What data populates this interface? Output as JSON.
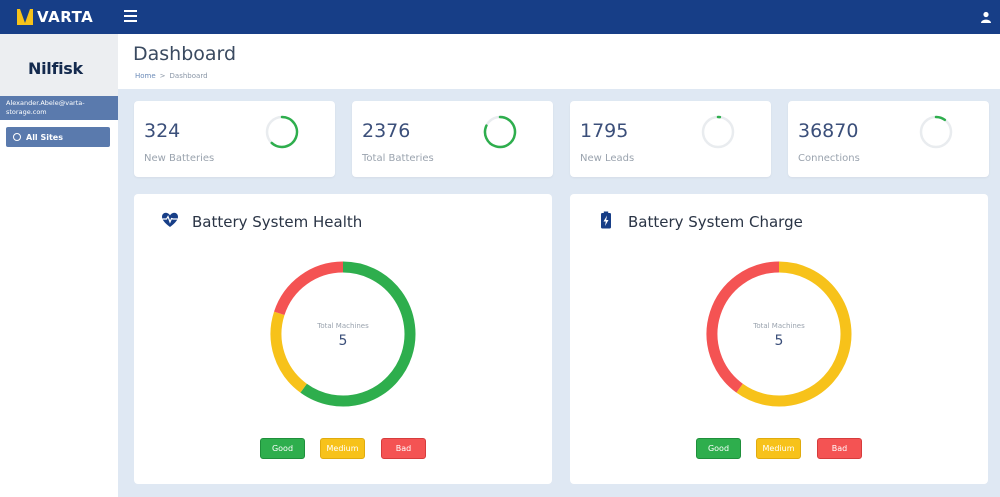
{
  "app": {
    "logo_text": "VARTA",
    "brand_name": "Nilfisk",
    "user_email": "Alexander.Abele@varta-storage.com",
    "all_sites_label": "All Sites"
  },
  "header": {
    "title": "Dashboard",
    "breadcrumb": {
      "home": "Home",
      "separator": ">",
      "current": "Dashboard"
    }
  },
  "stats": [
    {
      "value": "324",
      "label": "New Batteries",
      "progress": 0.62,
      "color": "#2eae4d"
    },
    {
      "value": "2376",
      "label": "Total Batteries",
      "progress": 0.82,
      "color": "#2eae4d"
    },
    {
      "value": "1795",
      "label": "New Leads",
      "progress": 0.02,
      "color": "#2eae4d"
    },
    {
      "value": "36870",
      "label": "Connections",
      "progress": 0.1,
      "color": "#2eae4d"
    }
  ],
  "colors": {
    "good": "#2eae4d",
    "medium": "#f7c21a",
    "bad": "#f45353",
    "track": "#e9ecef"
  },
  "panels": [
    {
      "title": "Battery System Health",
      "icon": "heart-pulse-icon",
      "center_label": "Total Machines",
      "center_value": "5",
      "chart_data": {
        "type": "pie",
        "title": "Battery System Health",
        "categories": [
          "Good",
          "Medium",
          "Bad"
        ],
        "values": [
          3,
          1,
          1
        ],
        "colors": [
          "#2eae4d",
          "#f7c21a",
          "#f45353"
        ]
      },
      "legend": {
        "good": "Good",
        "medium": "Medium",
        "bad": "Bad"
      }
    },
    {
      "title": "Battery System Charge",
      "icon": "battery-charging-icon",
      "center_label": "Total Machines",
      "center_value": "5",
      "chart_data": {
        "type": "pie",
        "title": "Battery System Charge",
        "categories": [
          "Good",
          "Medium",
          "Bad"
        ],
        "values": [
          0,
          3,
          2
        ],
        "colors": [
          "#2eae4d",
          "#f7c21a",
          "#f45353"
        ]
      },
      "legend": {
        "good": "Good",
        "medium": "Medium",
        "bad": "Bad"
      }
    }
  ]
}
